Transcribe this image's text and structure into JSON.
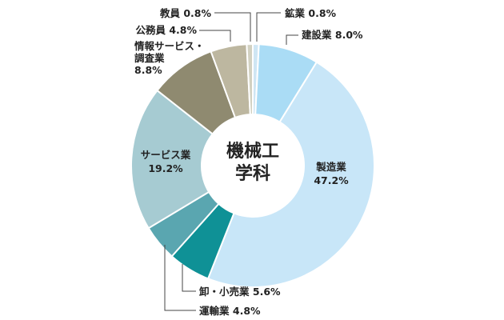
{
  "chart_data": {
    "type": "pie",
    "donut": true,
    "center_label": [
      "機械工",
      "学科"
    ],
    "slices": [
      {
        "label": "鉱業",
        "value": 0.8,
        "value_text": "0.8%",
        "color": "#cfe6f4"
      },
      {
        "label": "建設業",
        "value": 8.0,
        "value_text": "8.0%",
        "color": "#aadcf5"
      },
      {
        "label": "製造業",
        "value": 47.2,
        "value_text": "47.2%",
        "color": "#c8e6f8"
      },
      {
        "label": "卸・小売業",
        "value": 5.6,
        "value_text": "5.6%",
        "color": "#0f9196"
      },
      {
        "label": "運輸業",
        "value": 4.8,
        "value_text": "4.8%",
        "color": "#5aa6b0"
      },
      {
        "label": "サービス業",
        "value": 19.2,
        "value_text": "19.2%",
        "color": "#a6cbd2"
      },
      {
        "label": "情報サービス・調査業",
        "label_lines": [
          "情報サービス・",
          "調査業"
        ],
        "value": 8.8,
        "value_text": "8.8%",
        "color": "#8f8a70"
      },
      {
        "label": "公務員",
        "value": 4.8,
        "value_text": "4.8%",
        "color": "#bdb7a0"
      },
      {
        "label": "教員",
        "value": 0.8,
        "value_text": "0.8%",
        "color": "#d2d1c1"
      }
    ],
    "title": "",
    "legend": "none"
  }
}
